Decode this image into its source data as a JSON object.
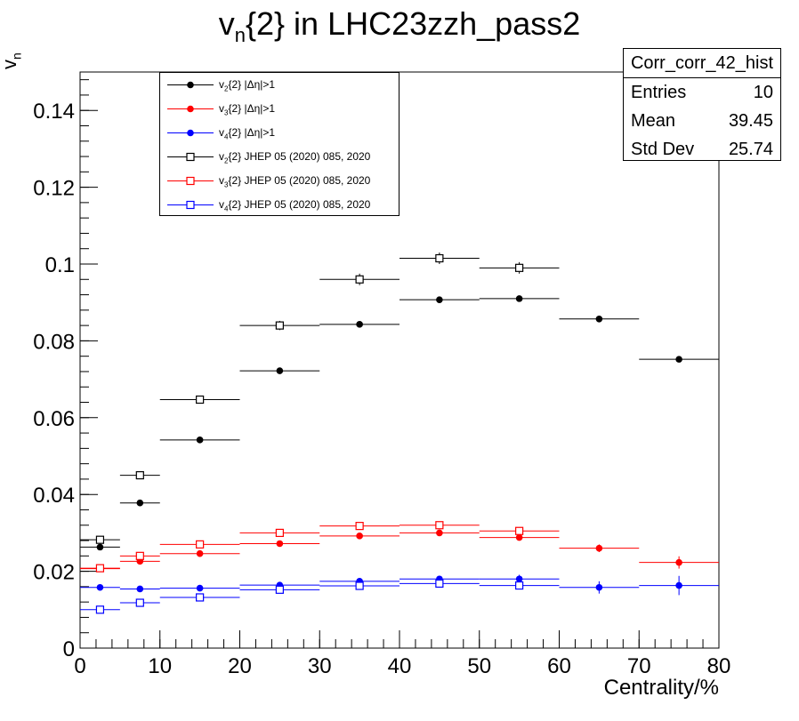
{
  "title_prefix": "v",
  "title_sub": "n",
  "title_suffix": "{2} in LHC23zzh_pass2",
  "stats": {
    "name": "Corr_corr_42_hist",
    "rows": [
      {
        "label": "Entries",
        "value": "10"
      },
      {
        "label": "Mean",
        "value": "39.45"
      },
      {
        "label": "Std Dev",
        "value": "25.74"
      }
    ]
  },
  "legend": [
    {
      "sub": "2",
      "rest": "{2} |Δη|>1",
      "color": "#000000",
      "marker": "filled"
    },
    {
      "sub": "3",
      "rest": "{2} |Δη|>1",
      "color": "#ff0000",
      "marker": "filled"
    },
    {
      "sub": "4",
      "rest": "{2} |Δη|>1",
      "color": "#0000ff",
      "marker": "filled"
    },
    {
      "sub": "2",
      "rest": "{2} JHEP 05 (2020) 085, 2020",
      "color": "#000000",
      "marker": "open"
    },
    {
      "sub": "3",
      "rest": "{2} JHEP 05 (2020) 085, 2020",
      "color": "#ff0000",
      "marker": "open"
    },
    {
      "sub": "4",
      "rest": "{2} JHEP 05 (2020) 085, 2020",
      "color": "#0000ff",
      "marker": "open"
    }
  ],
  "chart_data": {
    "type": "scatter",
    "xlabel": "Centrality/%",
    "ylabel_main": "v",
    "ylabel_sub": "n",
    "xlim": [
      0,
      80
    ],
    "ylim": [
      0,
      0.15
    ],
    "xticks": [
      0,
      10,
      20,
      30,
      40,
      50,
      60,
      70,
      80
    ],
    "yticks": [
      0,
      0.02,
      0.04,
      0.06,
      0.08,
      0.1,
      0.12,
      0.14
    ],
    "ytick_labels": [
      "0",
      "0.02",
      "0.04",
      "0.06",
      "0.08",
      "0.1",
      "0.12",
      "0.14"
    ],
    "grid": false,
    "legend_position": "top-left",
    "series": [
      {
        "name": "v2{2} |Δη|>1",
        "color": "#000000",
        "marker": "filled",
        "points": [
          {
            "x": 2.5,
            "xerr": 2.5,
            "y": 0.0263,
            "yerr": 0.0008
          },
          {
            "x": 7.5,
            "xerr": 2.5,
            "y": 0.0378,
            "yerr": 0.0004
          },
          {
            "x": 15,
            "xerr": 5,
            "y": 0.0542,
            "yerr": 0.0003
          },
          {
            "x": 25,
            "xerr": 5,
            "y": 0.0722,
            "yerr": 0.0003
          },
          {
            "x": 35,
            "xerr": 5,
            "y": 0.0843,
            "yerr": 0.0003
          },
          {
            "x": 45,
            "xerr": 5,
            "y": 0.0907,
            "yerr": 0.0003
          },
          {
            "x": 55,
            "xerr": 5,
            "y": 0.091,
            "yerr": 0.0003
          },
          {
            "x": 65,
            "xerr": 5,
            "y": 0.0857,
            "yerr": 0.0004
          },
          {
            "x": 75,
            "xerr": 5,
            "y": 0.0752,
            "yerr": 0.0006
          }
        ]
      },
      {
        "name": "v3{2} |Δη|>1",
        "color": "#ff0000",
        "marker": "filled",
        "points": [
          {
            "x": 2.5,
            "xerr": 2.5,
            "y": 0.0207,
            "yerr": 0.0008
          },
          {
            "x": 7.5,
            "xerr": 2.5,
            "y": 0.0226,
            "yerr": 0.0006
          },
          {
            "x": 15,
            "xerr": 5,
            "y": 0.0246,
            "yerr": 0.0004
          },
          {
            "x": 25,
            "xerr": 5,
            "y": 0.0272,
            "yerr": 0.0004
          },
          {
            "x": 35,
            "xerr": 5,
            "y": 0.0292,
            "yerr": 0.0004
          },
          {
            "x": 45,
            "xerr": 5,
            "y": 0.03,
            "yerr": 0.0005
          },
          {
            "x": 55,
            "xerr": 5,
            "y": 0.0288,
            "yerr": 0.0007
          },
          {
            "x": 65,
            "xerr": 5,
            "y": 0.026,
            "yerr": 0.001
          },
          {
            "x": 75,
            "xerr": 5,
            "y": 0.0223,
            "yerr": 0.0016
          }
        ]
      },
      {
        "name": "v4{2} |Δη|>1",
        "color": "#0000ff",
        "marker": "filled",
        "points": [
          {
            "x": 2.5,
            "xerr": 2.5,
            "y": 0.0158,
            "yerr": 0.0005
          },
          {
            "x": 7.5,
            "xerr": 2.5,
            "y": 0.0154,
            "yerr": 0.0005
          },
          {
            "x": 15,
            "xerr": 5,
            "y": 0.0156,
            "yerr": 0.0005
          },
          {
            "x": 25,
            "xerr": 5,
            "y": 0.0164,
            "yerr": 0.0006
          },
          {
            "x": 35,
            "xerr": 5,
            "y": 0.0174,
            "yerr": 0.0007
          },
          {
            "x": 45,
            "xerr": 5,
            "y": 0.018,
            "yerr": 0.0008
          },
          {
            "x": 55,
            "xerr": 5,
            "y": 0.018,
            "yerr": 0.0011
          },
          {
            "x": 65,
            "xerr": 5,
            "y": 0.0158,
            "yerr": 0.0016
          },
          {
            "x": 75,
            "xerr": 5,
            "y": 0.0163,
            "yerr": 0.0025
          }
        ]
      },
      {
        "name": "v2{2} JHEP 05 (2020) 085, 2020",
        "color": "#000000",
        "marker": "open",
        "points": [
          {
            "x": 2.5,
            "xerr": 2.5,
            "y": 0.0282,
            "yerr": 0.0008
          },
          {
            "x": 7.5,
            "xerr": 2.5,
            "y": 0.045,
            "yerr": 0.0008
          },
          {
            "x": 15,
            "xerr": 5,
            "y": 0.0647,
            "yerr": 0.0008
          },
          {
            "x": 25,
            "xerr": 5,
            "y": 0.084,
            "yerr": 0.0012
          },
          {
            "x": 35,
            "xerr": 5,
            "y": 0.096,
            "yerr": 0.0015
          },
          {
            "x": 45,
            "xerr": 5,
            "y": 0.1015,
            "yerr": 0.0015
          },
          {
            "x": 55,
            "xerr": 5,
            "y": 0.099,
            "yerr": 0.0015
          }
        ]
      },
      {
        "name": "v3{2} JHEP 05 (2020) 085, 2020",
        "color": "#ff0000",
        "marker": "open",
        "points": [
          {
            "x": 2.5,
            "xerr": 2.5,
            "y": 0.0208,
            "yerr": 0.0006
          },
          {
            "x": 7.5,
            "xerr": 2.5,
            "y": 0.024,
            "yerr": 0.0006
          },
          {
            "x": 15,
            "xerr": 5,
            "y": 0.027,
            "yerr": 0.0006
          },
          {
            "x": 25,
            "xerr": 5,
            "y": 0.03,
            "yerr": 0.0006
          },
          {
            "x": 35,
            "xerr": 5,
            "y": 0.0318,
            "yerr": 0.0007
          },
          {
            "x": 45,
            "xerr": 5,
            "y": 0.032,
            "yerr": 0.0008
          },
          {
            "x": 55,
            "xerr": 5,
            "y": 0.0305,
            "yerr": 0.0009
          }
        ]
      },
      {
        "name": "v4{2} JHEP 05 (2020) 085, 2020",
        "color": "#0000ff",
        "marker": "open",
        "points": [
          {
            "x": 2.5,
            "xerr": 2.5,
            "y": 0.01,
            "yerr": 0.0006
          },
          {
            "x": 7.5,
            "xerr": 2.5,
            "y": 0.0118,
            "yerr": 0.0006
          },
          {
            "x": 15,
            "xerr": 5,
            "y": 0.0132,
            "yerr": 0.0006
          },
          {
            "x": 25,
            "xerr": 5,
            "y": 0.0152,
            "yerr": 0.0007
          },
          {
            "x": 35,
            "xerr": 5,
            "y": 0.0162,
            "yerr": 0.0007
          },
          {
            "x": 45,
            "xerr": 5,
            "y": 0.0168,
            "yerr": 0.0008
          },
          {
            "x": 55,
            "xerr": 5,
            "y": 0.0163,
            "yerr": 0.0009
          }
        ]
      }
    ]
  }
}
